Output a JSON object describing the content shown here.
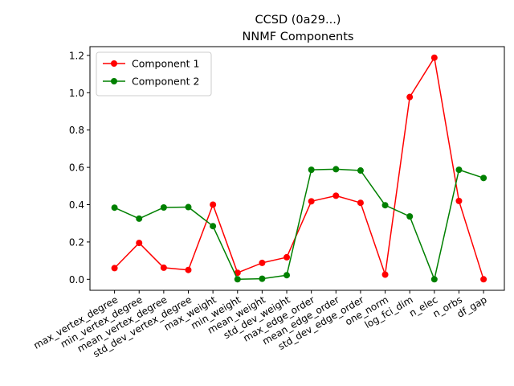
{
  "chart_data": {
    "type": "line",
    "title": "CCSD (0a29...)",
    "subtitle": "NNMF Components",
    "xlabel": "",
    "ylabel": "",
    "categories": [
      "max_vertex_degree",
      "min_vertex_degree",
      "mean_vertex_degree",
      "std_dev_vertex_degree",
      "max_weight",
      "min_weight",
      "mean_weight",
      "std_dev_weight",
      "max_edge_order",
      "mean_edge_order",
      "std_dev_edge_order",
      "one_norm",
      "log_fci_dim",
      "n_elec",
      "n_orbs",
      "df_gap"
    ],
    "series": [
      {
        "name": "Component 1",
        "color": "#ff0000",
        "values": [
          0.06,
          0.195,
          0.062,
          0.05,
          0.4,
          0.035,
          0.088,
          0.118,
          0.418,
          0.448,
          0.41,
          0.025,
          0.977,
          1.188,
          0.42,
          0.0
        ]
      },
      {
        "name": "Component 2",
        "color": "#008000",
        "values": [
          0.384,
          0.325,
          0.385,
          0.387,
          0.285,
          0.0,
          0.003,
          0.022,
          0.587,
          0.59,
          0.583,
          0.397,
          0.337,
          0.0,
          0.587,
          0.543
        ]
      }
    ],
    "yticks": [
      "0.0",
      "0.2",
      "0.4",
      "0.6",
      "0.8",
      "1.0",
      "1.2"
    ],
    "ylim": [
      -0.059,
      1.247
    ],
    "grid": false,
    "legend_position": "upper-left"
  }
}
